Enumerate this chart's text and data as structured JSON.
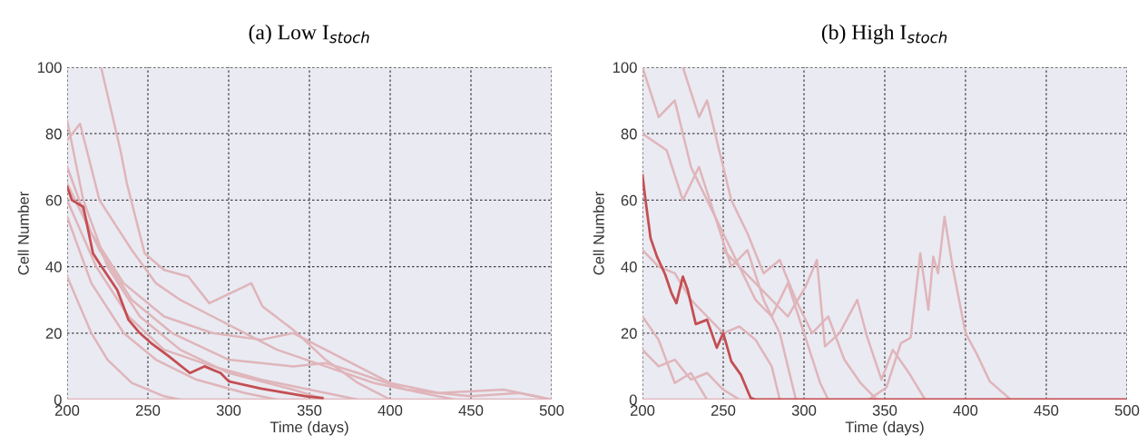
{
  "chart_data": [
    {
      "type": "line",
      "title": "(a) Low I$_{stoch}$",
      "xlabel": "Time (days)",
      "ylabel": "Cell Number",
      "xlim": [
        200,
        500
      ],
      "ylim": [
        0,
        100
      ],
      "xticks": [
        200,
        250,
        300,
        350,
        400,
        450,
        500
      ],
      "yticks": [
        0,
        20,
        40,
        60,
        80,
        100
      ],
      "grid": true,
      "series": [
        {
          "color": "#dfb5ba",
          "x": [
            221,
            233,
            237,
            248,
            260,
            275,
            288,
            314,
            321,
            340,
            360,
            380,
            400
          ],
          "values": [
            100,
            75,
            65,
            44,
            39,
            37,
            29,
            35,
            28,
            21,
            12,
            5,
            0
          ]
        },
        {
          "color": "#dfb5ba",
          "x": [
            200,
            210,
            225,
            245,
            270,
            300,
            340,
            360
          ],
          "values": [
            84,
            60,
            40,
            25,
            15,
            8,
            3,
            0
          ]
        },
        {
          "color": "#dfb5ba",
          "x": [
            200,
            215,
            225,
            240,
            260,
            270
          ],
          "values": [
            37,
            20,
            12,
            5,
            1,
            0
          ]
        },
        {
          "color": "#dfb5ba",
          "x": [
            200,
            208,
            220,
            240,
            255,
            270,
            290,
            310,
            330,
            360,
            390,
            420,
            440
          ],
          "values": [
            78,
            83,
            60,
            45,
            35,
            30,
            25,
            20,
            15,
            10,
            5,
            2,
            0
          ]
        },
        {
          "color": "#dfb5ba",
          "x": [
            200,
            215,
            235,
            260,
            290,
            320,
            340,
            360,
            380,
            400,
            430,
            470,
            490,
            500
          ],
          "values": [
            70,
            50,
            35,
            25,
            20,
            18,
            20,
            15,
            10,
            5,
            2,
            3,
            1,
            0
          ]
        },
        {
          "color": "#dfb5ba",
          "x": [
            200,
            218,
            238,
            260,
            290,
            320,
            350,
            380
          ],
          "values": [
            60,
            40,
            25,
            15,
            10,
            6,
            3,
            0
          ]
        },
        {
          "color": "#dfb5ba",
          "x": [
            200,
            220,
            240,
            265,
            300,
            340,
            360,
            380,
            410,
            450,
            480,
            500
          ],
          "values": [
            65,
            45,
            30,
            20,
            12,
            10,
            11,
            8,
            3,
            1,
            2,
            0
          ]
        },
        {
          "color": "#dfb5ba",
          "x": [
            200,
            215,
            235,
            255,
            280,
            310,
            330
          ],
          "values": [
            55,
            35,
            20,
            12,
            6,
            2,
            0
          ]
        },
        {
          "color": "#dfb5ba",
          "x": [
            200,
            500
          ],
          "values": [
            0,
            0
          ]
        },
        {
          "color": "#c44e52",
          "x": [
            200,
            203,
            210,
            216,
            220,
            231,
            238,
            245,
            252,
            263,
            276,
            285,
            295,
            300,
            320,
            348,
            358
          ],
          "values": [
            64,
            60,
            58,
            44,
            41,
            33,
            24,
            20,
            17,
            13,
            8,
            10,
            8,
            5.5,
            3.3,
            1,
            0.5
          ]
        }
      ]
    },
    {
      "type": "line",
      "title": "(b) High I$_{stoch}$",
      "xlabel": "Time (days)",
      "ylabel": "Cell Number",
      "xlim": [
        200,
        500
      ],
      "ylim": [
        0,
        100
      ],
      "xticks": [
        200,
        250,
        300,
        350,
        400,
        450,
        500
      ],
      "yticks": [
        0,
        20,
        40,
        60,
        80,
        100
      ],
      "grid": true,
      "series": [
        {
          "color": "#dfb5ba",
          "x": [
            340,
            351,
            360,
            366,
            372,
            377,
            380,
            383,
            387,
            392,
            400,
            407,
            415,
            428
          ],
          "values": [
            0,
            3.6,
            17,
            18.6,
            44,
            27,
            43,
            38,
            55,
            40,
            20,
            13.7,
            5.5,
            0
          ]
        },
        {
          "color": "#dfb5ba",
          "x": [
            250,
            270,
            290,
            301,
            308,
            313,
            322,
            333,
            339,
            348,
            355,
            365,
            375
          ],
          "values": [
            45,
            35,
            25,
            34,
            42,
            16,
            20,
            30,
            19,
            6,
            15,
            8,
            0
          ]
        },
        {
          "color": "#dfb5ba",
          "x": [
            200,
            210,
            220,
            230,
            240,
            250,
            260,
            270,
            280,
            290,
            300,
            310,
            315
          ],
          "values": [
            100,
            85,
            90,
            70,
            60,
            50,
            40,
            30,
            25,
            35,
            20,
            5,
            0
          ]
        },
        {
          "color": "#dfb5ba",
          "x": [
            200,
            215,
            225,
            235,
            245,
            255,
            265,
            275,
            285,
            290,
            295
          ],
          "values": [
            80,
            75,
            60,
            70,
            55,
            40,
            45,
            30,
            20,
            10,
            0
          ]
        },
        {
          "color": "#dfb5ba",
          "x": [
            200,
            210,
            220,
            230,
            240,
            250,
            260
          ],
          "values": [
            15,
            10,
            12,
            6,
            8,
            3,
            0
          ]
        },
        {
          "color": "#dfb5ba",
          "x": [
            200,
            210,
            220,
            230,
            240,
            250,
            260,
            270,
            280,
            285
          ],
          "values": [
            45,
            40,
            38,
            30,
            25,
            20,
            22,
            18,
            10,
            0
          ]
        },
        {
          "color": "#dfb5ba",
          "x": [
            225,
            235,
            240,
            250,
            255,
            265,
            275,
            285,
            295,
            305,
            315,
            325,
            335,
            345
          ],
          "values": [
            100,
            85,
            90,
            70,
            60,
            50,
            38,
            42,
            30,
            20,
            25,
            12,
            5,
            0
          ]
        },
        {
          "color": "#dfb5ba",
          "x": [
            200,
            210,
            220,
            230,
            240
          ],
          "values": [
            25,
            18,
            5,
            8,
            0
          ]
        },
        {
          "color": "#dfb5ba",
          "x": [
            200,
            500
          ],
          "values": [
            0,
            0
          ]
        },
        {
          "color": "#c44e52",
          "x": [
            200,
            202,
            205,
            209,
            214,
            218,
            221,
            225,
            228,
            233,
            240,
            246,
            250,
            255,
            261,
            267,
            270,
            500
          ],
          "values": [
            67.5,
            59.6,
            48.6,
            43,
            37.7,
            32,
            29,
            37,
            33,
            22.7,
            24,
            15.6,
            20,
            11.5,
            7.4,
            0.5,
            0,
            0
          ]
        }
      ]
    }
  ]
}
